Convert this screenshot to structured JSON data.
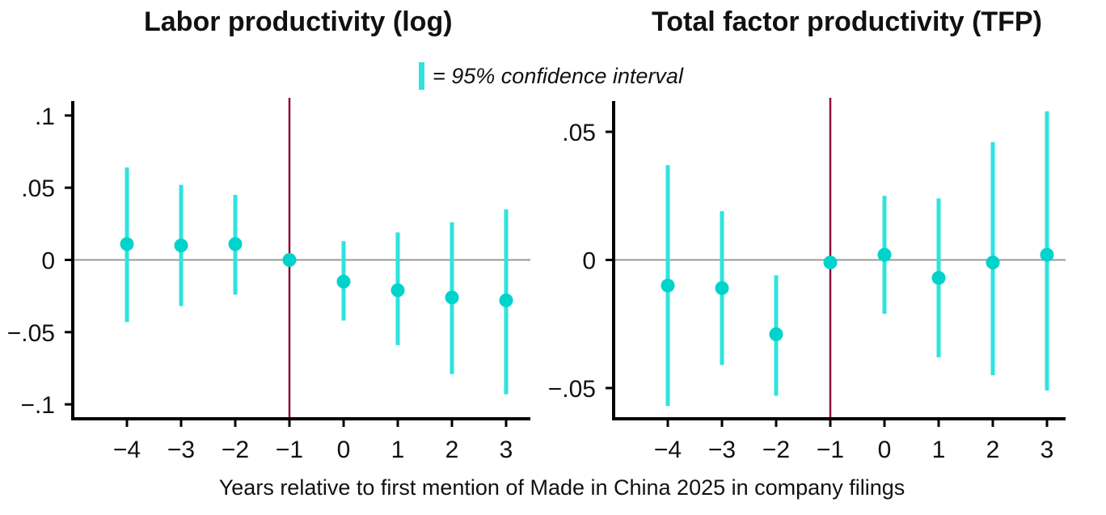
{
  "legend": {
    "label": "= 95% confidence interval",
    "color": "#2ee3df"
  },
  "xlabel": "Years relative to first mention of Made in China 2025 in company filings",
  "colors": {
    "point": "#00d2cc",
    "ci": "#2ee3df",
    "axis": "#000000",
    "zero_line": "#999999",
    "event_line": "#8b0a3a"
  },
  "chart_data": [
    {
      "type": "scatter",
      "title": "Labor productivity (log)",
      "xlabel": "",
      "ylabel": "",
      "x": [
        -4,
        -3,
        -2,
        -1,
        0,
        1,
        2,
        3
      ],
      "xticks": [
        "−4",
        "−3",
        "−2",
        "−1",
        "0",
        "1",
        "2",
        "3"
      ],
      "yticks": [
        0.1,
        0.05,
        0,
        -0.05,
        -0.1
      ],
      "ytick_labels": [
        ".1",
        ".05",
        "0",
        "−.05",
        "−.1"
      ],
      "ylim": [
        -0.11,
        0.11
      ],
      "event_x": -1,
      "series": [
        {
          "values": [
            0.011,
            0.01,
            0.011,
            0.0,
            -0.015,
            -0.021,
            -0.026,
            -0.028
          ],
          "ci_low": [
            -0.043,
            -0.032,
            -0.024,
            0.0,
            -0.042,
            -0.059,
            -0.079,
            -0.093
          ],
          "ci_high": [
            0.064,
            0.052,
            0.045,
            0.0,
            0.013,
            0.019,
            0.026,
            0.035
          ]
        }
      ]
    },
    {
      "type": "scatter",
      "title": "Total factor productivity (TFP)",
      "xlabel": "",
      "ylabel": "",
      "x": [
        -4,
        -3,
        -2,
        -1,
        0,
        1,
        2,
        3
      ],
      "xticks": [
        "−4",
        "−3",
        "−2",
        "−1",
        "0",
        "1",
        "2",
        "3"
      ],
      "yticks": [
        0.05,
        0,
        -0.05
      ],
      "ytick_labels": [
        ".05",
        "0",
        "−.05"
      ],
      "ylim": [
        -0.062,
        0.062
      ],
      "event_x": -1,
      "series": [
        {
          "values": [
            -0.01,
            -0.011,
            -0.029,
            -0.001,
            0.002,
            -0.007,
            -0.001,
            0.002
          ],
          "ci_low": [
            -0.057,
            -0.041,
            -0.053,
            -0.001,
            -0.021,
            -0.038,
            -0.045,
            -0.051
          ],
          "ci_high": [
            0.037,
            0.019,
            -0.006,
            -0.001,
            0.025,
            0.024,
            0.046,
            0.058
          ]
        }
      ]
    }
  ]
}
